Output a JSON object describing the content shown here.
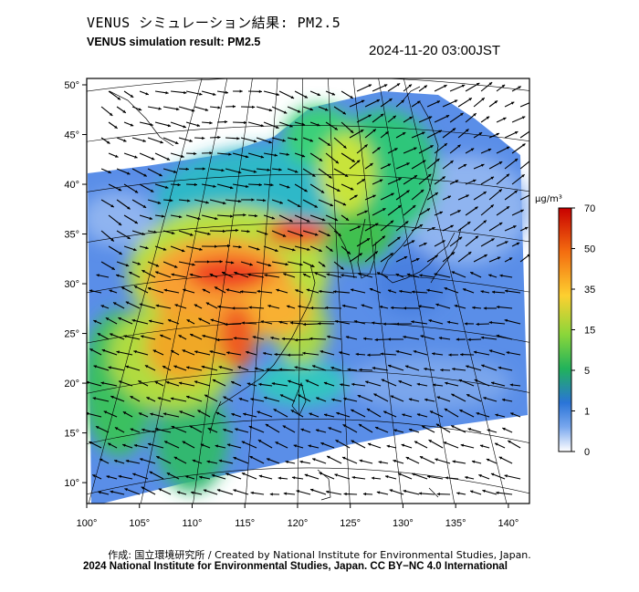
{
  "header": {
    "title_jp": "VENUS シミュレーション結果: PM2.5",
    "title_en": "VENUS simulation result: PM2.5",
    "timestamp": "2024-11-20 03:00JST"
  },
  "map": {
    "longitude_ticks": [
      "100°",
      "105°",
      "110°",
      "115°",
      "120°",
      "125°",
      "130°",
      "135°",
      "140°"
    ],
    "latitude_ticks": [
      "50°",
      "45°",
      "40°",
      "35°",
      "30°",
      "25°",
      "20°",
      "15°",
      "10°"
    ],
    "longitude_values": [
      100,
      105,
      110,
      115,
      120,
      125,
      130,
      135,
      140
    ],
    "latitude_values": [
      50,
      45,
      40,
      35,
      30,
      25,
      20,
      15,
      10
    ]
  },
  "legend": {
    "unit": "μg/m³",
    "labels": [
      "70",
      "50",
      "35",
      "15",
      "5",
      "1",
      "0"
    ],
    "values": [
      70,
      50,
      35,
      15,
      5,
      1,
      0
    ],
    "colors": [
      "#d7191c",
      "#f46d43",
      "#fdae61",
      "#a6d96a",
      "#1a9641",
      "#2c7bb6",
      "#8fb6e6",
      "#f5f5ff"
    ]
  },
  "footer": {
    "credit": "作成: 国立環境研究所 / Created by National Institute for Environmental Studies, Japan.",
    "copyright": "2024 National Institute for Environmental Studies, Japan. CC BY−NC 4.0 International"
  }
}
